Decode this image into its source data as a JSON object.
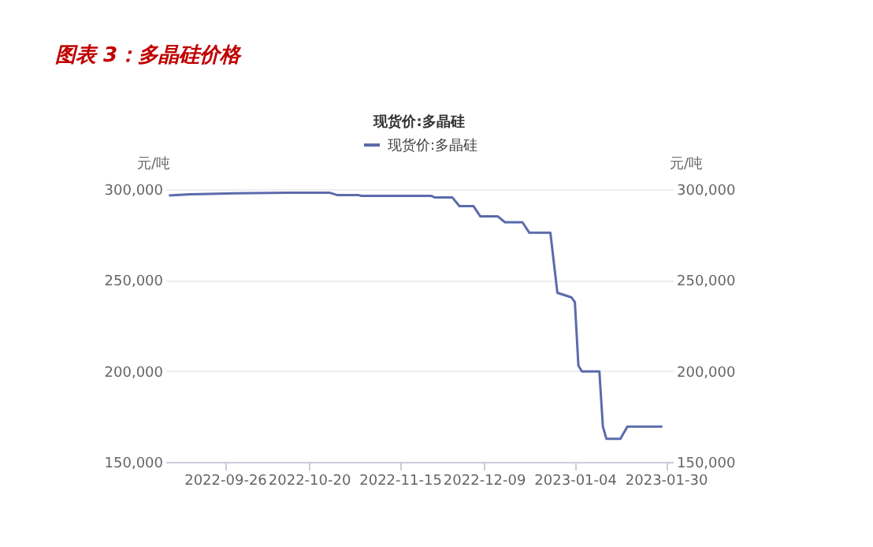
{
  "chart_data": {
    "type": "line",
    "title": "图表 3：多晶硅价格",
    "subtitle": "现货价:多晶硅",
    "ylabel": "元/吨",
    "y2label": "元/吨",
    "x": [
      "2022-09-10",
      "2022-09-16",
      "2022-09-29",
      "2022-10-14",
      "2022-10-26",
      "2022-10-28",
      "2022-11-03",
      "2022-11-04",
      "2022-11-24",
      "2022-11-25",
      "2022-11-30",
      "2022-12-02",
      "2022-12-06",
      "2022-12-08",
      "2022-12-13",
      "2022-12-15",
      "2022-12-20",
      "2022-12-22",
      "2022-12-28",
      "2022-12-30",
      "2023-01-03",
      "2023-01-04",
      "2023-01-05",
      "2023-01-06",
      "2023-01-11",
      "2023-01-12",
      "2023-01-13",
      "2023-01-17",
      "2023-01-19",
      "2023-01-29"
    ],
    "series": [
      {
        "name": "现货价:多晶硅",
        "color": "#5b6bab",
        "values": [
          296500,
          297200,
          297700,
          298000,
          298000,
          296800,
          296800,
          296300,
          296300,
          295400,
          295400,
          290700,
          290700,
          285000,
          285000,
          281800,
          281800,
          276000,
          276000,
          243000,
          240500,
          237800,
          203000,
          199700,
          199700,
          169400,
          162700,
          162700,
          169400,
          169400
        ]
      }
    ],
    "xlim": [
      "2022-09-09",
      "2023-02-01"
    ],
    "xticks": [
      "2022-09-26",
      "2022-10-20",
      "2022-11-15",
      "2022-12-09",
      "2023-01-04",
      "2023-01-30"
    ],
    "ylim": [
      150000,
      300000
    ],
    "yticks": [
      {
        "value": 150000,
        "label": "150,000"
      },
      {
        "value": 200000,
        "label": "200,000"
      },
      {
        "value": 250000,
        "label": "250,000"
      },
      {
        "value": 300000,
        "label": "300,000"
      }
    ],
    "y2lim": [
      150000,
      300000
    ],
    "y2ticks": [
      {
        "value": 150000,
        "label": "150,000"
      },
      {
        "value": 200000,
        "label": "200,000"
      },
      {
        "value": 250000,
        "label": "250,000"
      },
      {
        "value": 300000,
        "label": "300,000"
      }
    ],
    "grid": "y",
    "legend": "top",
    "line_style": "solid",
    "marker": "none"
  }
}
